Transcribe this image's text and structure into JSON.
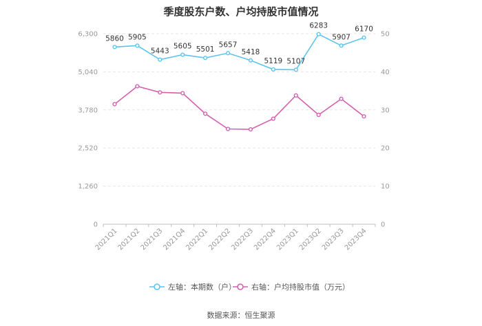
{
  "chart_data": {
    "type": "line",
    "title": "季度股东户数、户均持股市值情况",
    "categories": [
      "2021Q1",
      "2021Q2",
      "2021Q3",
      "2021Q4",
      "2022Q1",
      "2022Q2",
      "2022Q3",
      "2022Q4",
      "2023Q1",
      "2023Q2",
      "2023Q3",
      "2023Q4"
    ],
    "left_axis": {
      "ylim": [
        0,
        6300
      ],
      "ticks": [
        0,
        1260,
        2520,
        3780,
        5040,
        6300
      ],
      "tick_labels": [
        "0",
        "1,260",
        "2,520",
        "3,780",
        "5,040",
        "6,300"
      ]
    },
    "right_axis": {
      "ylim": [
        0,
        50
      ],
      "ticks": [
        0,
        10,
        20,
        30,
        40,
        50
      ],
      "tick_labels": [
        "0",
        "10",
        "20",
        "30",
        "40",
        "50"
      ]
    },
    "series": [
      {
        "name": "左轴：本期数（户）",
        "axis": "left",
        "color": "#5bc4ec",
        "values": [
          5860,
          5905,
          5443,
          5605,
          5501,
          5657,
          5418,
          5119,
          5107,
          6283,
          5907,
          6170
        ],
        "labels": [
          "5860",
          "5905",
          "5443",
          "5605",
          "5501",
          "5657",
          "5418",
          "5119",
          "5107",
          "6283",
          "5907",
          "6170"
        ]
      },
      {
        "name": "右轴：户均持股市值（万元）",
        "axis": "right",
        "color": "#d45fae",
        "values": [
          31.5,
          36.2,
          34.6,
          34.4,
          29.0,
          25.0,
          24.9,
          27.7,
          33.8,
          28.7,
          32.9,
          28.3
        ]
      }
    ],
    "grid": true,
    "legend_position": "bottom"
  },
  "source_text": "数据来源：恒生聚源"
}
